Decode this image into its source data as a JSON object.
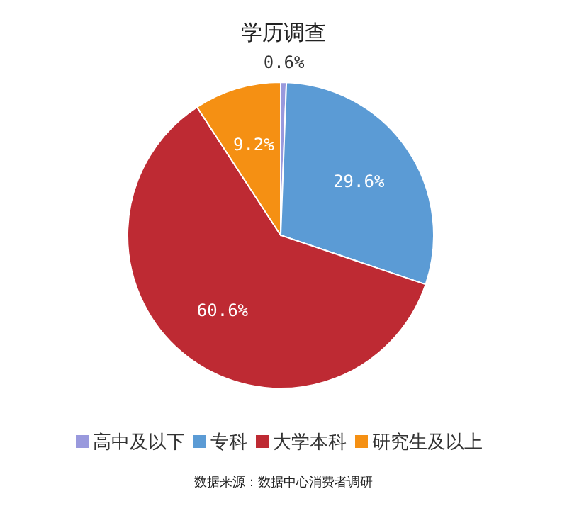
{
  "chart_data": {
    "type": "pie",
    "title": "学历调查",
    "categories": [
      "高中及以下",
      "专科",
      "大学本科",
      "研究生及以上"
    ],
    "values": [
      0.6,
      29.6,
      60.6,
      9.2
    ],
    "value_labels": [
      "0.6%",
      "29.6%",
      "60.6%",
      "9.2%"
    ],
    "colors": [
      "#9999dd",
      "#5b9bd5",
      "#be2a33",
      "#f59013"
    ],
    "legend": "bottom",
    "annotations": [
      "数据来源：数据中心消费者调研"
    ]
  }
}
